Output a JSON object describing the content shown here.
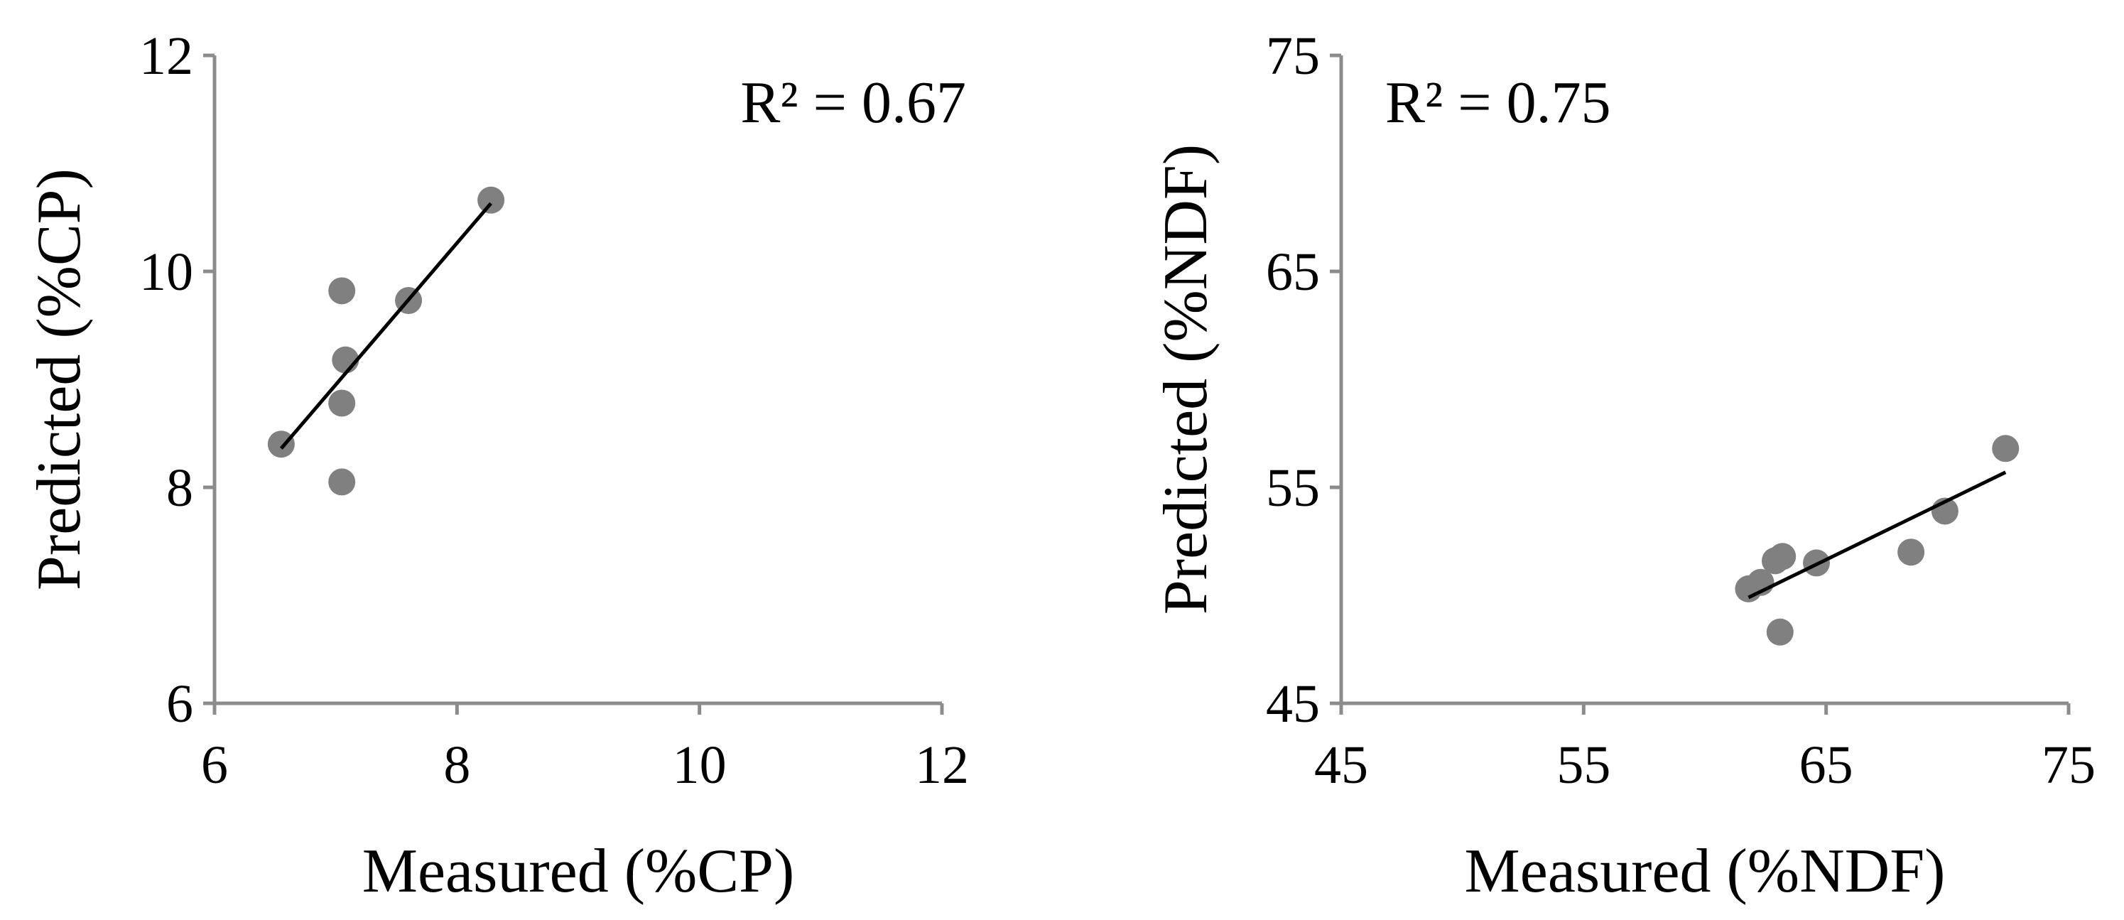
{
  "colors": {
    "axis": "#8c8c8c",
    "marker": "#808080",
    "trendline": "#000000",
    "text": "#000000"
  },
  "chart_data": [
    {
      "type": "scatter",
      "xlabel": "Measured (%CP)",
      "ylabel": "Predicted (%CP)",
      "xlim": [
        6,
        12
      ],
      "ylim": [
        6,
        12
      ],
      "x_ticks": [
        "6",
        "8",
        "10",
        "12"
      ],
      "y_ticks": [
        "6",
        "8",
        "10",
        "12"
      ],
      "annotation": "R² = 0.67",
      "grid": false,
      "points": [
        {
          "x": 6.55,
          "y": 8.4
        },
        {
          "x": 7.05,
          "y": 9.82
        },
        {
          "x": 7.08,
          "y": 9.18
        },
        {
          "x": 7.05,
          "y": 8.78
        },
        {
          "x": 7.05,
          "y": 8.05
        },
        {
          "x": 7.6,
          "y": 9.73
        },
        {
          "x": 8.28,
          "y": 10.66
        }
      ],
      "trendline": {
        "x": [
          6.55,
          8.28
        ],
        "y": [
          8.36,
          10.63
        ]
      }
    },
    {
      "type": "scatter",
      "xlabel": "Measured (%NDF)",
      "ylabel": "Predicted (%NDF)",
      "xlim": [
        45,
        75
      ],
      "ylim": [
        45,
        75
      ],
      "x_ticks": [
        "45",
        "55",
        "65",
        "75"
      ],
      "y_ticks": [
        "45",
        "55",
        "65",
        "75"
      ],
      "annotation": "R² = 0.75",
      "grid": false,
      "points": [
        {
          "x": 61.8,
          "y": 50.3
        },
        {
          "x": 62.3,
          "y": 50.6
        },
        {
          "x": 62.9,
          "y": 51.6
        },
        {
          "x": 63.2,
          "y": 51.8
        },
        {
          "x": 63.1,
          "y": 48.3
        },
        {
          "x": 64.6,
          "y": 51.5
        },
        {
          "x": 68.5,
          "y": 52.0
        },
        {
          "x": 69.9,
          "y": 53.9
        },
        {
          "x": 72.4,
          "y": 56.8
        }
      ],
      "trendline": {
        "x": [
          61.8,
          72.4
        ],
        "y": [
          49.9,
          55.7
        ]
      }
    }
  ]
}
